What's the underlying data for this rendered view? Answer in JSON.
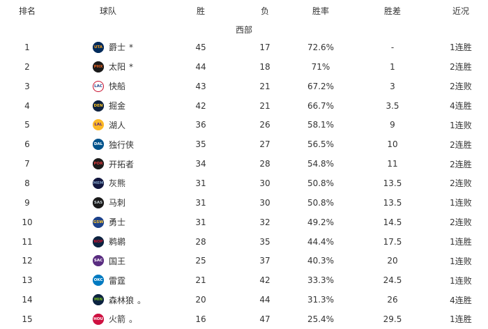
{
  "table": {
    "headers": {
      "rank": "排名",
      "team": "球队",
      "wins": "胜",
      "losses": "负",
      "win_pct": "胜率",
      "games_behind": "胜差",
      "streak": "近况"
    },
    "conference": "西部",
    "text_color": "#333333",
    "background_color": "#ffffff",
    "rows": [
      {
        "rank": "1",
        "abbr": "UTA",
        "name": "爵士",
        "marker": "*",
        "wins": "45",
        "losses": "17",
        "pct": "72.6%",
        "gb": "-",
        "streak": "1连胜",
        "logo_bg": "#002B5C",
        "logo_fg": "#F9A01B",
        "logo_border": "#002B5C"
      },
      {
        "rank": "2",
        "abbr": "PHX",
        "name": "太阳",
        "marker": "*",
        "wins": "44",
        "losses": "18",
        "pct": "71%",
        "gb": "1",
        "streak": "2连胜",
        "logo_bg": "#1a1a1a",
        "logo_fg": "#E56020",
        "logo_border": "#1a1a1a"
      },
      {
        "rank": "3",
        "abbr": "LAC",
        "name": "快船",
        "marker": "",
        "wins": "43",
        "losses": "21",
        "pct": "67.2%",
        "gb": "3",
        "streak": "2连败",
        "logo_bg": "#ffffff",
        "logo_fg": "#1D428A",
        "logo_border": "#C8102E"
      },
      {
        "rank": "4",
        "abbr": "DEN",
        "name": "掘金",
        "marker": "",
        "wins": "42",
        "losses": "21",
        "pct": "66.7%",
        "gb": "3.5",
        "streak": "4连胜",
        "logo_bg": "#0E2240",
        "logo_fg": "#FEC524",
        "logo_border": "#0E2240"
      },
      {
        "rank": "5",
        "abbr": "LAL",
        "name": "湖人",
        "marker": "",
        "wins": "36",
        "losses": "26",
        "pct": "58.1%",
        "gb": "9",
        "streak": "1连败",
        "logo_bg": "#FDB927",
        "logo_fg": "#552583",
        "logo_border": "#FDB927"
      },
      {
        "rank": "6",
        "abbr": "DAL",
        "name": "独行侠",
        "marker": "",
        "wins": "35",
        "losses": "27",
        "pct": "56.5%",
        "gb": "10",
        "streak": "2连胜",
        "logo_bg": "#00538C",
        "logo_fg": "#ffffff",
        "logo_border": "#00538C"
      },
      {
        "rank": "7",
        "abbr": "POR",
        "name": "开拓者",
        "marker": "",
        "wins": "34",
        "losses": "28",
        "pct": "54.8%",
        "gb": "11",
        "streak": "2连胜",
        "logo_bg": "#1c1c1c",
        "logo_fg": "#E03A3E",
        "logo_border": "#1c1c1c"
      },
      {
        "rank": "8",
        "abbr": "MEM",
        "name": "灰熊",
        "marker": "",
        "wins": "31",
        "losses": "30",
        "pct": "50.8%",
        "gb": "13.5",
        "streak": "2连败",
        "logo_bg": "#12173F",
        "logo_fg": "#7D9CC0",
        "logo_border": "#12173F"
      },
      {
        "rank": "9",
        "abbr": "SAS",
        "name": "马刺",
        "marker": "",
        "wins": "31",
        "losses": "30",
        "pct": "50.8%",
        "gb": "13.5",
        "streak": "1连败",
        "logo_bg": "#1a1a1a",
        "logo_fg": "#C4CED4",
        "logo_border": "#1a1a1a"
      },
      {
        "rank": "10",
        "abbr": "GSW",
        "name": "勇士",
        "marker": "",
        "wins": "31",
        "losses": "32",
        "pct": "49.2%",
        "gb": "14.5",
        "streak": "2连败",
        "logo_bg": "#1D428A",
        "logo_fg": "#FFC72C",
        "logo_border": "#1D428A"
      },
      {
        "rank": "11",
        "abbr": "NOP",
        "name": "鹈鹕",
        "marker": "",
        "wins": "28",
        "losses": "35",
        "pct": "44.4%",
        "gb": "17.5",
        "streak": "1连胜",
        "logo_bg": "#0C2340",
        "logo_fg": "#C8102E",
        "logo_border": "#0C2340"
      },
      {
        "rank": "12",
        "abbr": "SAC",
        "name": "国王",
        "marker": "",
        "wins": "25",
        "losses": "37",
        "pct": "40.3%",
        "gb": "20",
        "streak": "1连败",
        "logo_bg": "#5A2D81",
        "logo_fg": "#ffffff",
        "logo_border": "#5A2D81"
      },
      {
        "rank": "13",
        "abbr": "OKC",
        "name": "雷霆",
        "marker": "",
        "wins": "21",
        "losses": "42",
        "pct": "33.3%",
        "gb": "24.5",
        "streak": "1连败",
        "logo_bg": "#007AC1",
        "logo_fg": "#ffffff",
        "logo_border": "#007AC1"
      },
      {
        "rank": "14",
        "abbr": "MIN",
        "name": "森林狼",
        "marker": "。",
        "wins": "20",
        "losses": "44",
        "pct": "31.3%",
        "gb": "26",
        "streak": "4连胜",
        "logo_bg": "#0C2340",
        "logo_fg": "#78BE20",
        "logo_border": "#0C2340"
      },
      {
        "rank": "15",
        "abbr": "HOU",
        "name": "火箭",
        "marker": "。",
        "wins": "16",
        "losses": "47",
        "pct": "25.4%",
        "gb": "29.5",
        "streak": "1连胜",
        "logo_bg": "#CE1141",
        "logo_fg": "#ffffff",
        "logo_border": "#CE1141"
      }
    ]
  }
}
